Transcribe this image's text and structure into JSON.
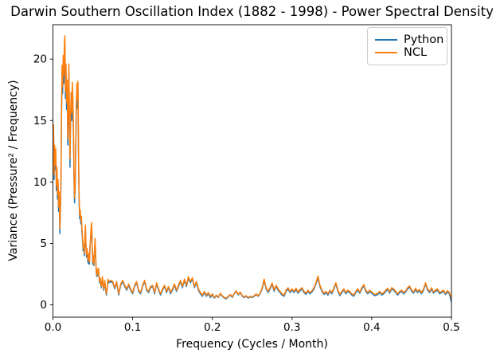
{
  "figure": {
    "background": "#ffffff"
  },
  "chart_data": {
    "type": "line",
    "title": "Darwin Southern Oscillation Index (1882 - 1998) - Power Spectral Density",
    "xlabel": "Frequency (Cycles / Month)",
    "ylabel": "Variance (Pressure² / Frequency)",
    "xlim": [
      0.0,
      0.5
    ],
    "ylim": [
      -1.0,
      22.8
    ],
    "grid": false,
    "axis_color": "#000000",
    "line_width": 1.5,
    "xticks": {
      "values": [
        0.0,
        0.1,
        0.2,
        0.3,
        0.4,
        0.5
      ],
      "labels": [
        "0.0",
        "0.1",
        "0.2",
        "0.3",
        "0.4",
        "0.5"
      ]
    },
    "yticks": {
      "values": [
        0,
        5,
        10,
        15,
        20
      ],
      "labels": [
        "0",
        "5",
        "10",
        "15",
        "20"
      ]
    },
    "legend": {
      "position": "upper-right",
      "entries": [
        {
          "label": "Python",
          "color": "#1f77b4"
        },
        {
          "label": "NCL",
          "color": "#ff7f0e"
        }
      ]
    },
    "columns": [
      "frequency",
      "Python",
      "NCL"
    ],
    "points": [
      [
        0.0007,
        14.3,
        14.7
      ],
      [
        0.0014,
        10.2,
        10.6
      ],
      [
        0.0021,
        12.6,
        13.0
      ],
      [
        0.0029,
        11.0,
        11.4
      ],
      [
        0.0036,
        12.3,
        12.7
      ],
      [
        0.0043,
        9.3,
        9.7
      ],
      [
        0.005,
        10.8,
        11.2
      ],
      [
        0.0057,
        8.6,
        9.0
      ],
      [
        0.0064,
        9.8,
        10.2
      ],
      [
        0.0071,
        7.6,
        8.0
      ],
      [
        0.0079,
        8.8,
        9.2
      ],
      [
        0.0086,
        5.8,
        6.2
      ],
      [
        0.0093,
        7.4,
        7.8
      ],
      [
        0.01,
        9.6,
        10.0
      ],
      [
        0.0107,
        15.0,
        15.5
      ],
      [
        0.0114,
        18.8,
        19.5
      ],
      [
        0.0121,
        17.2,
        17.8
      ],
      [
        0.0129,
        19.6,
        20.3
      ],
      [
        0.0136,
        18.0,
        18.7
      ],
      [
        0.0143,
        20.3,
        21.2
      ],
      [
        0.015,
        21.0,
        21.9
      ],
      [
        0.0157,
        16.8,
        17.4
      ],
      [
        0.0164,
        18.9,
        19.6
      ],
      [
        0.0171,
        15.9,
        16.5
      ],
      [
        0.0179,
        17.6,
        18.3
      ],
      [
        0.0186,
        13.0,
        13.5
      ],
      [
        0.0193,
        15.4,
        16.0
      ],
      [
        0.02,
        18.9,
        19.6
      ],
      [
        0.0207,
        14.6,
        15.2
      ],
      [
        0.0214,
        11.2,
        11.9
      ],
      [
        0.0221,
        14.8,
        15.4
      ],
      [
        0.0229,
        16.6,
        17.3
      ],
      [
        0.0236,
        15.0,
        15.6
      ],
      [
        0.0243,
        17.4,
        18.1
      ],
      [
        0.025,
        16.2,
        16.9
      ],
      [
        0.0257,
        13.8,
        14.4
      ],
      [
        0.0264,
        10.4,
        10.9
      ],
      [
        0.0271,
        8.3,
        8.7
      ],
      [
        0.0279,
        9.6,
        10.0
      ],
      [
        0.0286,
        12.8,
        13.3
      ],
      [
        0.0293,
        15.7,
        16.3
      ],
      [
        0.03,
        17.3,
        18.0
      ],
      [
        0.0307,
        16.0,
        16.7
      ],
      [
        0.0314,
        17.5,
        18.2
      ],
      [
        0.0321,
        12.0,
        12.5
      ],
      [
        0.0329,
        8.2,
        8.6
      ],
      [
        0.0336,
        7.0,
        7.3
      ],
      [
        0.0343,
        7.4,
        7.7
      ],
      [
        0.035,
        6.6,
        6.9
      ],
      [
        0.0357,
        6.9,
        7.2
      ],
      [
        0.0364,
        5.9,
        6.2
      ],
      [
        0.0371,
        5.3,
        5.6
      ],
      [
        0.0379,
        4.4,
        4.6
      ],
      [
        0.0386,
        4.7,
        4.9
      ],
      [
        0.0393,
        4.0,
        4.2
      ],
      [
        0.04,
        5.0,
        5.3
      ],
      [
        0.0407,
        6.2,
        6.5
      ],
      [
        0.0414,
        4.8,
        5.0
      ],
      [
        0.0421,
        3.9,
        4.1
      ],
      [
        0.0429,
        4.4,
        4.6
      ],
      [
        0.0436,
        3.6,
        3.8
      ],
      [
        0.0443,
        3.4,
        3.6
      ],
      [
        0.045,
        4.0,
        4.2
      ],
      [
        0.0457,
        3.3,
        3.5
      ],
      [
        0.0464,
        4.5,
        4.7
      ],
      [
        0.0471,
        5.2,
        5.4
      ],
      [
        0.0479,
        6.0,
        6.3
      ],
      [
        0.0486,
        6.4,
        6.7
      ],
      [
        0.0493,
        4.5,
        4.7
      ],
      [
        0.05,
        3.3,
        3.5
      ],
      [
        0.0507,
        3.8,
        4.0
      ],
      [
        0.0514,
        3.2,
        3.3
      ],
      [
        0.0521,
        4.2,
        4.4
      ],
      [
        0.0529,
        5.2,
        5.4
      ],
      [
        0.0536,
        3.9,
        4.1
      ],
      [
        0.0543,
        2.7,
        2.8
      ],
      [
        0.055,
        2.3,
        2.4
      ],
      [
        0.0557,
        2.8,
        2.9
      ],
      [
        0.0564,
        2.4,
        2.5
      ],
      [
        0.0571,
        2.9,
        3.0
      ],
      [
        0.0579,
        2.2,
        2.3
      ],
      [
        0.0586,
        1.8,
        1.9
      ],
      [
        0.0593,
        2.1,
        2.2
      ],
      [
        0.06,
        1.7,
        1.8
      ],
      [
        0.0607,
        1.4,
        1.5
      ],
      [
        0.0614,
        1.8,
        1.9
      ],
      [
        0.0621,
        2.2,
        2.3
      ],
      [
        0.0629,
        1.6,
        1.7
      ],
      [
        0.0636,
        1.2,
        1.3
      ],
      [
        0.0643,
        1.5,
        1.6
      ],
      [
        0.065,
        1.9,
        2.0
      ],
      [
        0.0657,
        1.4,
        1.5
      ],
      [
        0.0664,
        1.1,
        1.2
      ],
      [
        0.0671,
        0.8,
        0.9
      ],
      [
        0.0679,
        1.2,
        1.3
      ],
      [
        0.0686,
        1.7,
        1.8
      ],
      [
        0.0693,
        2.0,
        2.1
      ],
      [
        0.07,
        1.8,
        1.9
      ],
      [
        0.0725,
        1.9,
        2.0
      ],
      [
        0.075,
        1.8,
        1.9
      ],
      [
        0.0775,
        1.3,
        1.4
      ],
      [
        0.08,
        1.8,
        1.9
      ],
      [
        0.0825,
        0.8,
        0.9
      ],
      [
        0.085,
        1.6,
        1.7
      ],
      [
        0.0875,
        1.9,
        2.0
      ],
      [
        0.09,
        1.5,
        1.6
      ],
      [
        0.0925,
        1.2,
        1.3
      ],
      [
        0.095,
        1.6,
        1.7
      ],
      [
        0.0975,
        1.2,
        1.3
      ],
      [
        0.1,
        0.9,
        1.0
      ],
      [
        0.1025,
        1.5,
        1.6
      ],
      [
        0.105,
        1.8,
        1.9
      ],
      [
        0.1075,
        1.1,
        1.2
      ],
      [
        0.11,
        0.9,
        1.0
      ],
      [
        0.1125,
        1.5,
        1.6
      ],
      [
        0.115,
        1.9,
        2.0
      ],
      [
        0.1175,
        1.2,
        1.3
      ],
      [
        0.12,
        1.0,
        1.1
      ],
      [
        0.1225,
        1.4,
        1.5
      ],
      [
        0.125,
        1.5,
        1.6
      ],
      [
        0.1275,
        0.9,
        1.0
      ],
      [
        0.13,
        1.7,
        1.8
      ],
      [
        0.1325,
        1.2,
        1.3
      ],
      [
        0.135,
        0.8,
        0.9
      ],
      [
        0.1375,
        1.2,
        1.3
      ],
      [
        0.14,
        1.5,
        1.6
      ],
      [
        0.1425,
        1.0,
        1.1
      ],
      [
        0.145,
        1.4,
        1.5
      ],
      [
        0.1475,
        0.9,
        1.0
      ],
      [
        0.15,
        1.2,
        1.3
      ],
      [
        0.1525,
        1.6,
        1.7
      ],
      [
        0.155,
        1.1,
        1.2
      ],
      [
        0.1575,
        1.5,
        1.6
      ],
      [
        0.16,
        1.9,
        2.0
      ],
      [
        0.1625,
        1.4,
        1.5
      ],
      [
        0.165,
        2.0,
        2.1
      ],
      [
        0.1675,
        1.5,
        1.6
      ],
      [
        0.17,
        2.2,
        2.3
      ],
      [
        0.1725,
        1.8,
        1.9
      ],
      [
        0.175,
        2.1,
        2.2
      ],
      [
        0.1775,
        1.4,
        1.5
      ],
      [
        0.18,
        1.8,
        1.9
      ],
      [
        0.1825,
        1.2,
        1.3
      ],
      [
        0.185,
        0.9,
        1.0
      ],
      [
        0.1875,
        0.7,
        0.8
      ],
      [
        0.19,
        1.0,
        1.1
      ],
      [
        0.1925,
        0.7,
        0.8
      ],
      [
        0.195,
        0.9,
        1.0
      ],
      [
        0.1975,
        0.6,
        0.7
      ],
      [
        0.2,
        0.8,
        0.9
      ],
      [
        0.2025,
        0.55,
        0.6
      ],
      [
        0.205,
        0.75,
        0.8
      ],
      [
        0.2075,
        0.6,
        0.65
      ],
      [
        0.21,
        0.9,
        0.95
      ],
      [
        0.2125,
        0.7,
        0.75
      ],
      [
        0.215,
        0.55,
        0.6
      ],
      [
        0.2175,
        0.5,
        0.55
      ],
      [
        0.22,
        0.65,
        0.7
      ],
      [
        0.2225,
        0.8,
        0.85
      ],
      [
        0.225,
        0.6,
        0.65
      ],
      [
        0.2275,
        0.9,
        0.95
      ],
      [
        0.23,
        1.1,
        1.15
      ],
      [
        0.2325,
        0.8,
        0.85
      ],
      [
        0.235,
        1.0,
        1.05
      ],
      [
        0.2375,
        0.7,
        0.75
      ],
      [
        0.24,
        0.6,
        0.65
      ],
      [
        0.2425,
        0.7,
        0.75
      ],
      [
        0.245,
        0.55,
        0.6
      ],
      [
        0.2475,
        0.65,
        0.7
      ],
      [
        0.25,
        0.6,
        0.65
      ],
      [
        0.2525,
        0.7,
        0.75
      ],
      [
        0.255,
        0.85,
        0.9
      ],
      [
        0.2575,
        0.7,
        0.75
      ],
      [
        0.26,
        0.9,
        0.95
      ],
      [
        0.2625,
        1.3,
        1.4
      ],
      [
        0.265,
        2.0,
        2.1
      ],
      [
        0.2675,
        1.3,
        1.4
      ],
      [
        0.27,
        1.0,
        1.1
      ],
      [
        0.2725,
        1.3,
        1.4
      ],
      [
        0.275,
        1.7,
        1.8
      ],
      [
        0.2775,
        1.1,
        1.2
      ],
      [
        0.28,
        1.5,
        1.6
      ],
      [
        0.2825,
        1.2,
        1.3
      ],
      [
        0.285,
        1.0,
        1.1
      ],
      [
        0.2875,
        0.8,
        0.9
      ],
      [
        0.29,
        0.7,
        0.8
      ],
      [
        0.2925,
        1.1,
        1.2
      ],
      [
        0.295,
        1.3,
        1.4
      ],
      [
        0.2975,
        1.0,
        1.1
      ],
      [
        0.3,
        1.2,
        1.3
      ],
      [
        0.3025,
        1.0,
        1.1
      ],
      [
        0.305,
        1.25,
        1.35
      ],
      [
        0.3075,
        0.95,
        1.05
      ],
      [
        0.31,
        1.15,
        1.25
      ],
      [
        0.3125,
        1.3,
        1.4
      ],
      [
        0.315,
        1.0,
        1.1
      ],
      [
        0.3175,
        0.85,
        0.95
      ],
      [
        0.32,
        1.1,
        1.2
      ],
      [
        0.3225,
        0.9,
        1.0
      ],
      [
        0.325,
        1.05,
        1.15
      ],
      [
        0.3275,
        1.3,
        1.4
      ],
      [
        0.33,
        1.7,
        1.8
      ],
      [
        0.3325,
        2.2,
        2.35
      ],
      [
        0.335,
        1.5,
        1.6
      ],
      [
        0.3375,
        1.1,
        1.2
      ],
      [
        0.34,
        0.85,
        0.95
      ],
      [
        0.3425,
        1.0,
        1.1
      ],
      [
        0.345,
        0.8,
        0.9
      ],
      [
        0.3475,
        1.1,
        1.2
      ],
      [
        0.35,
        0.9,
        1.0
      ],
      [
        0.3525,
        1.3,
        1.4
      ],
      [
        0.355,
        1.7,
        1.8
      ],
      [
        0.3575,
        1.1,
        1.2
      ],
      [
        0.36,
        0.75,
        0.85
      ],
      [
        0.3625,
        1.0,
        1.1
      ],
      [
        0.365,
        1.2,
        1.3
      ],
      [
        0.3675,
        0.9,
        1.0
      ],
      [
        0.37,
        1.1,
        1.2
      ],
      [
        0.3725,
        1.0,
        1.1
      ],
      [
        0.375,
        0.8,
        0.9
      ],
      [
        0.3775,
        0.7,
        0.8
      ],
      [
        0.38,
        1.0,
        1.1
      ],
      [
        0.3825,
        1.2,
        1.3
      ],
      [
        0.385,
        0.95,
        1.05
      ],
      [
        0.3875,
        1.3,
        1.4
      ],
      [
        0.39,
        1.55,
        1.65
      ],
      [
        0.3925,
        1.1,
        1.2
      ],
      [
        0.395,
        0.9,
        1.0
      ],
      [
        0.3975,
        1.1,
        1.2
      ],
      [
        0.4,
        0.95,
        1.05
      ],
      [
        0.4025,
        0.8,
        0.9
      ],
      [
        0.405,
        0.75,
        0.85
      ],
      [
        0.4075,
        0.85,
        0.95
      ],
      [
        0.41,
        1.0,
        1.1
      ],
      [
        0.4125,
        0.8,
        0.9
      ],
      [
        0.415,
        0.9,
        1.0
      ],
      [
        0.4175,
        1.1,
        1.2
      ],
      [
        0.42,
        1.25,
        1.35
      ],
      [
        0.4225,
        0.95,
        1.05
      ],
      [
        0.425,
        1.3,
        1.4
      ],
      [
        0.4275,
        1.2,
        1.3
      ],
      [
        0.43,
        1.0,
        1.1
      ],
      [
        0.4325,
        0.8,
        0.9
      ],
      [
        0.435,
        1.0,
        1.1
      ],
      [
        0.4375,
        1.1,
        1.2
      ],
      [
        0.44,
        0.9,
        1.0
      ],
      [
        0.4425,
        1.05,
        1.15
      ],
      [
        0.445,
        1.3,
        1.4
      ],
      [
        0.4475,
        1.45,
        1.55
      ],
      [
        0.45,
        1.1,
        1.2
      ],
      [
        0.4525,
        0.95,
        1.05
      ],
      [
        0.455,
        1.25,
        1.35
      ],
      [
        0.4575,
        1.0,
        1.1
      ],
      [
        0.46,
        1.15,
        1.25
      ],
      [
        0.4625,
        0.9,
        1.0
      ],
      [
        0.465,
        1.2,
        1.3
      ],
      [
        0.4675,
        1.7,
        1.8
      ],
      [
        0.47,
        1.2,
        1.3
      ],
      [
        0.4725,
        1.0,
        1.1
      ],
      [
        0.475,
        1.3,
        1.4
      ],
      [
        0.4775,
        0.95,
        1.05
      ],
      [
        0.48,
        1.1,
        1.2
      ],
      [
        0.4825,
        1.2,
        1.3
      ],
      [
        0.485,
        0.9,
        1.0
      ],
      [
        0.4875,
        1.0,
        1.1
      ],
      [
        0.49,
        1.1,
        1.2
      ],
      [
        0.4925,
        0.85,
        0.95
      ],
      [
        0.495,
        1.05,
        1.15
      ],
      [
        0.4975,
        0.9,
        1.0
      ],
      [
        0.5,
        0.2,
        0.55
      ]
    ]
  }
}
